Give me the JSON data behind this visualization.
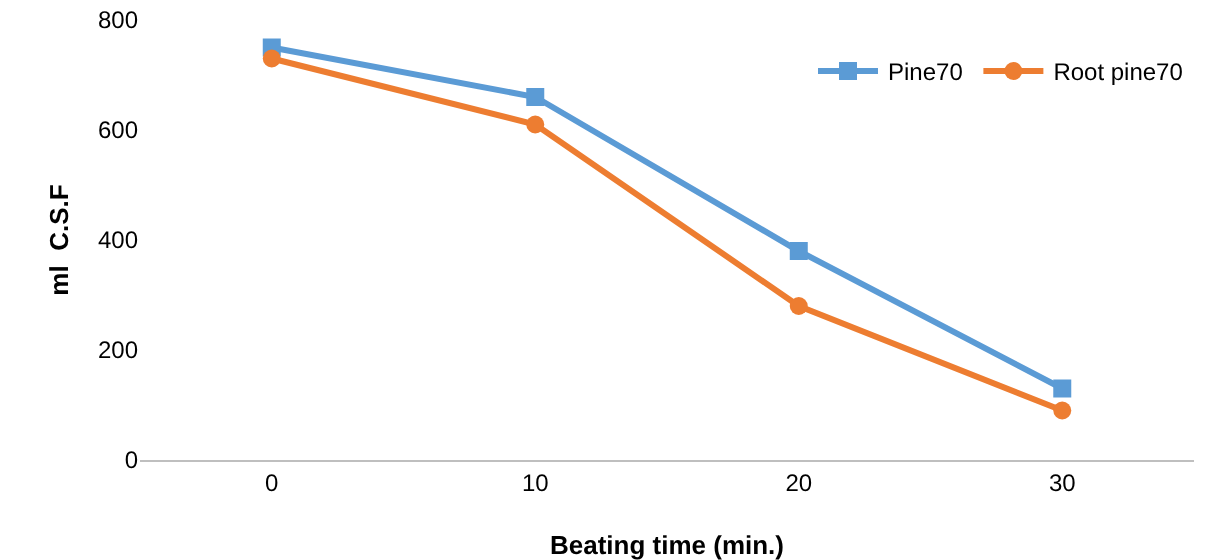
{
  "chart_data": {
    "type": "line",
    "xlabel": "Beating time (min.)",
    "ylabel": "ml  C.S.F",
    "categories": [
      "0",
      "10",
      "20",
      "30"
    ],
    "series": [
      {
        "name": "Pine70",
        "color": "#5b9bd5",
        "marker": "square",
        "values": [
          750,
          660,
          380,
          130
        ]
      },
      {
        "name": "Root pine70",
        "color": "#ed7d31",
        "marker": "circle",
        "values": [
          730,
          610,
          280,
          90
        ]
      }
    ],
    "ylim": [
      0,
      800
    ],
    "yticks": [
      0,
      200,
      400,
      600,
      800
    ],
    "grid": false,
    "legend": "top right"
  }
}
